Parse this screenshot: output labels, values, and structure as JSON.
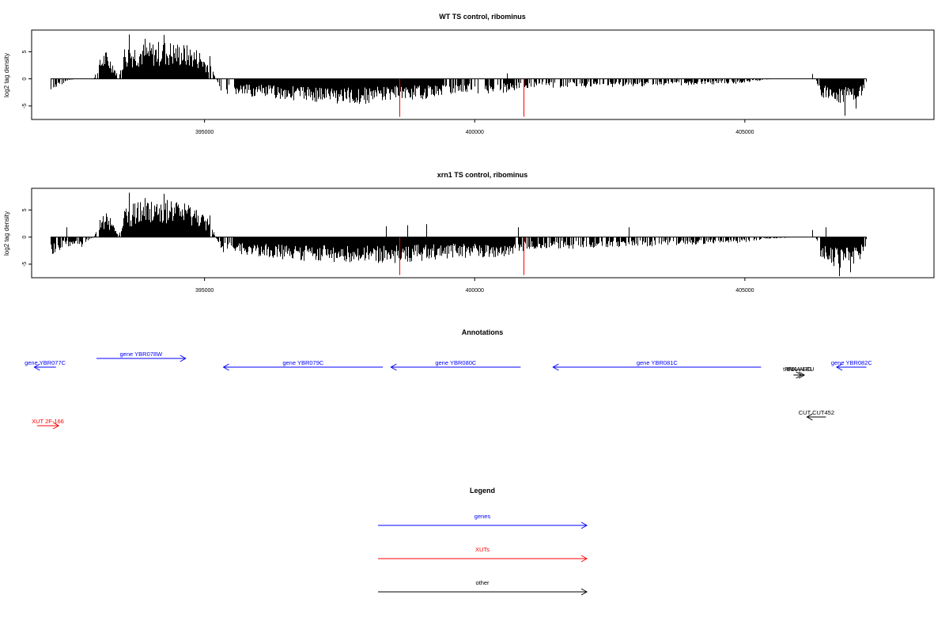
{
  "chart_data": [
    {
      "type": "bar",
      "title": "WT TS control, ribominus",
      "ylabel": "log2 tag density",
      "xlim": [
        391800,
        408500
      ],
      "ylim": [
        -7.5,
        9
      ],
      "x_ticks": [
        395000,
        400000,
        405000
      ],
      "x_tick_labels": [
        "395000",
        "400000",
        "405000"
      ],
      "y_ticks": [
        -5,
        0,
        5
      ],
      "y_tick_labels": [
        "-5",
        "0",
        "5"
      ],
      "baseline_color": "#000000",
      "bar_color": "#000000",
      "marker_color": "#ff0000",
      "markers": [
        {
          "x": 398600,
          "y": -7
        },
        {
          "x": 400900,
          "y": -7
        }
      ],
      "profile": [
        {
          "x": 392150,
          "y": -2.5
        },
        {
          "x": 392400,
          "y": -0.6
        },
        {
          "x": 392600,
          "y": 0
        },
        {
          "x": 392950,
          "y": 0
        },
        {
          "x": 393000,
          "y": 2.2
        },
        {
          "x": 393150,
          "y": 5
        },
        {
          "x": 393300,
          "y": 3
        },
        {
          "x": 393400,
          "y": 0
        },
        {
          "x": 393450,
          "y": 2
        },
        {
          "x": 393500,
          "y": 5.5
        },
        {
          "x": 393700,
          "y": 6
        },
        {
          "x": 394000,
          "y": 6.2
        },
        {
          "x": 394300,
          "y": 6.5
        },
        {
          "x": 394600,
          "y": 6
        },
        {
          "x": 394900,
          "y": 5
        },
        {
          "x": 395100,
          "y": 2.5
        },
        {
          "x": 395200,
          "y": 0
        },
        {
          "x": 395300,
          "y": -2.5
        },
        {
          "x": 395800,
          "y": -3
        },
        {
          "x": 396500,
          "y": -3.5
        },
        {
          "x": 397200,
          "y": -4
        },
        {
          "x": 397800,
          "y": -4.5
        },
        {
          "x": 398500,
          "y": -3.5
        },
        {
          "x": 399000,
          "y": -3.5
        },
        {
          "x": 399600,
          "y": -2.5
        },
        {
          "x": 400500,
          "y": -2.5
        },
        {
          "x": 401000,
          "y": -1.5
        },
        {
          "x": 402000,
          "y": -1.5
        },
        {
          "x": 403500,
          "y": -1.2
        },
        {
          "x": 404900,
          "y": -0.8
        },
        {
          "x": 405400,
          "y": -0.1
        },
        {
          "x": 406000,
          "y": 0
        },
        {
          "x": 406300,
          "y": 0
        },
        {
          "x": 406400,
          "y": -3
        },
        {
          "x": 406700,
          "y": -4.5
        },
        {
          "x": 407000,
          "y": -4
        },
        {
          "x": 407200,
          "y": -3
        },
        {
          "x": 407250,
          "y": 0
        }
      ],
      "spikes": [
        {
          "x": 393600,
          "y": 8.2
        },
        {
          "x": 394250,
          "y": 8.1
        },
        {
          "x": 393900,
          "y": 7.4
        },
        {
          "x": 395100,
          "y": 4.2
        },
        {
          "x": 400600,
          "y": 1.0
        },
        {
          "x": 406250,
          "y": 0.9
        },
        {
          "x": 406850,
          "y": -6.8
        },
        {
          "x": 407050,
          "y": -5.5
        }
      ]
    },
    {
      "type": "bar",
      "title": "xrn1 TS control, ribominus",
      "ylabel": "log2 tag density",
      "xlim": [
        391800,
        408500
      ],
      "ylim": [
        -7.5,
        9
      ],
      "x_ticks": [
        395000,
        400000,
        405000
      ],
      "x_tick_labels": [
        "395000",
        "400000",
        "405000"
      ],
      "y_ticks": [
        -5,
        0,
        5
      ],
      "y_tick_labels": [
        "-5",
        "0",
        "5"
      ],
      "baseline_color": "#000000",
      "bar_color": "#000000",
      "marker_color": "#ff0000",
      "markers": [
        {
          "x": 398600,
          "y": -7
        },
        {
          "x": 400900,
          "y": -7
        }
      ],
      "profile": [
        {
          "x": 392150,
          "y": -3.5
        },
        {
          "x": 392400,
          "y": -1.5
        },
        {
          "x": 392700,
          "y": -2
        },
        {
          "x": 392950,
          "y": 0
        },
        {
          "x": 393000,
          "y": 2.2
        },
        {
          "x": 393150,
          "y": 4.5
        },
        {
          "x": 393300,
          "y": 3
        },
        {
          "x": 393400,
          "y": 0
        },
        {
          "x": 393450,
          "y": 2
        },
        {
          "x": 393500,
          "y": 5.2
        },
        {
          "x": 393700,
          "y": 5.8
        },
        {
          "x": 394000,
          "y": 6
        },
        {
          "x": 394300,
          "y": 6.3
        },
        {
          "x": 394600,
          "y": 5.8
        },
        {
          "x": 394900,
          "y": 4.8
        },
        {
          "x": 395100,
          "y": 2.5
        },
        {
          "x": 395200,
          "y": 0
        },
        {
          "x": 395300,
          "y": -2.5
        },
        {
          "x": 395800,
          "y": -3
        },
        {
          "x": 396500,
          "y": -3.8
        },
        {
          "x": 397200,
          "y": -4.2
        },
        {
          "x": 397800,
          "y": -4.5
        },
        {
          "x": 398500,
          "y": -4.5
        },
        {
          "x": 399000,
          "y": -4
        },
        {
          "x": 399600,
          "y": -3.5
        },
        {
          "x": 400500,
          "y": -3.5
        },
        {
          "x": 401000,
          "y": -2
        },
        {
          "x": 402000,
          "y": -2
        },
        {
          "x": 403500,
          "y": -1.5
        },
        {
          "x": 404900,
          "y": -1
        },
        {
          "x": 405400,
          "y": -0.3
        },
        {
          "x": 406000,
          "y": 0
        },
        {
          "x": 406300,
          "y": 0
        },
        {
          "x": 406400,
          "y": -3.5
        },
        {
          "x": 406700,
          "y": -5.5
        },
        {
          "x": 407000,
          "y": -5
        },
        {
          "x": 407200,
          "y": -3.5
        },
        {
          "x": 407250,
          "y": 0
        }
      ],
      "spikes": [
        {
          "x": 393600,
          "y": 8.2
        },
        {
          "x": 394250,
          "y": 8.0
        },
        {
          "x": 393900,
          "y": 7.2
        },
        {
          "x": 395100,
          "y": 4.0
        },
        {
          "x": 392450,
          "y": 1.8
        },
        {
          "x": 398350,
          "y": 2.0
        },
        {
          "x": 398750,
          "y": 2.2
        },
        {
          "x": 399100,
          "y": 2.4
        },
        {
          "x": 400800,
          "y": 1.8
        },
        {
          "x": 402850,
          "y": 1.8
        },
        {
          "x": 406250,
          "y": 1.3
        },
        {
          "x": 406500,
          "y": 1.8
        },
        {
          "x": 406750,
          "y": -7.2
        },
        {
          "x": 406950,
          "y": -6.5
        }
      ]
    }
  ],
  "annotations": {
    "title": "Annotations",
    "colors": {
      "gene": "#0000ff",
      "xut": "#ff0000",
      "other": "#000000"
    },
    "features": [
      {
        "kind": "gene",
        "label": "gene YBR077C",
        "start": 392250,
        "end": 391850,
        "row": 0
      },
      {
        "kind": "gene",
        "label": "gene YBR078W",
        "start": 393000,
        "end": 394650,
        "row": -1
      },
      {
        "kind": "gene",
        "label": "gene YBR079C",
        "start": 398300,
        "end": 395350,
        "row": 0
      },
      {
        "kind": "gene",
        "label": "gene YBR080C",
        "start": 400850,
        "end": 398450,
        "row": 0
      },
      {
        "kind": "gene",
        "label": "gene YBR081C",
        "start": 405300,
        "end": 401450,
        "row": 0
      },
      {
        "kind": "gene",
        "label": "gene YBR082C",
        "start": 407250,
        "end": 406700,
        "row": 0
      },
      {
        "kind": "other",
        "label": "tRNA-ARG",
        "start": 405900,
        "end": 406050,
        "row": 1
      },
      {
        "kind": "other",
        "label": "tRNA-LEU",
        "start": 405950,
        "end": 406100,
        "row": 1
      },
      {
        "kind": "other",
        "label": "CUT CUT452",
        "start": 406500,
        "end": 406150,
        "row": 2
      },
      {
        "kind": "xut",
        "label": "XUT 2F-166",
        "start": 391900,
        "end": 392300,
        "row": 3
      }
    ]
  },
  "legend": {
    "title": "Legend",
    "items": [
      {
        "label": "genes",
        "color": "#0000ff"
      },
      {
        "label": "XUTs",
        "color": "#ff0000"
      },
      {
        "label": "other",
        "color": "#000000"
      }
    ]
  }
}
